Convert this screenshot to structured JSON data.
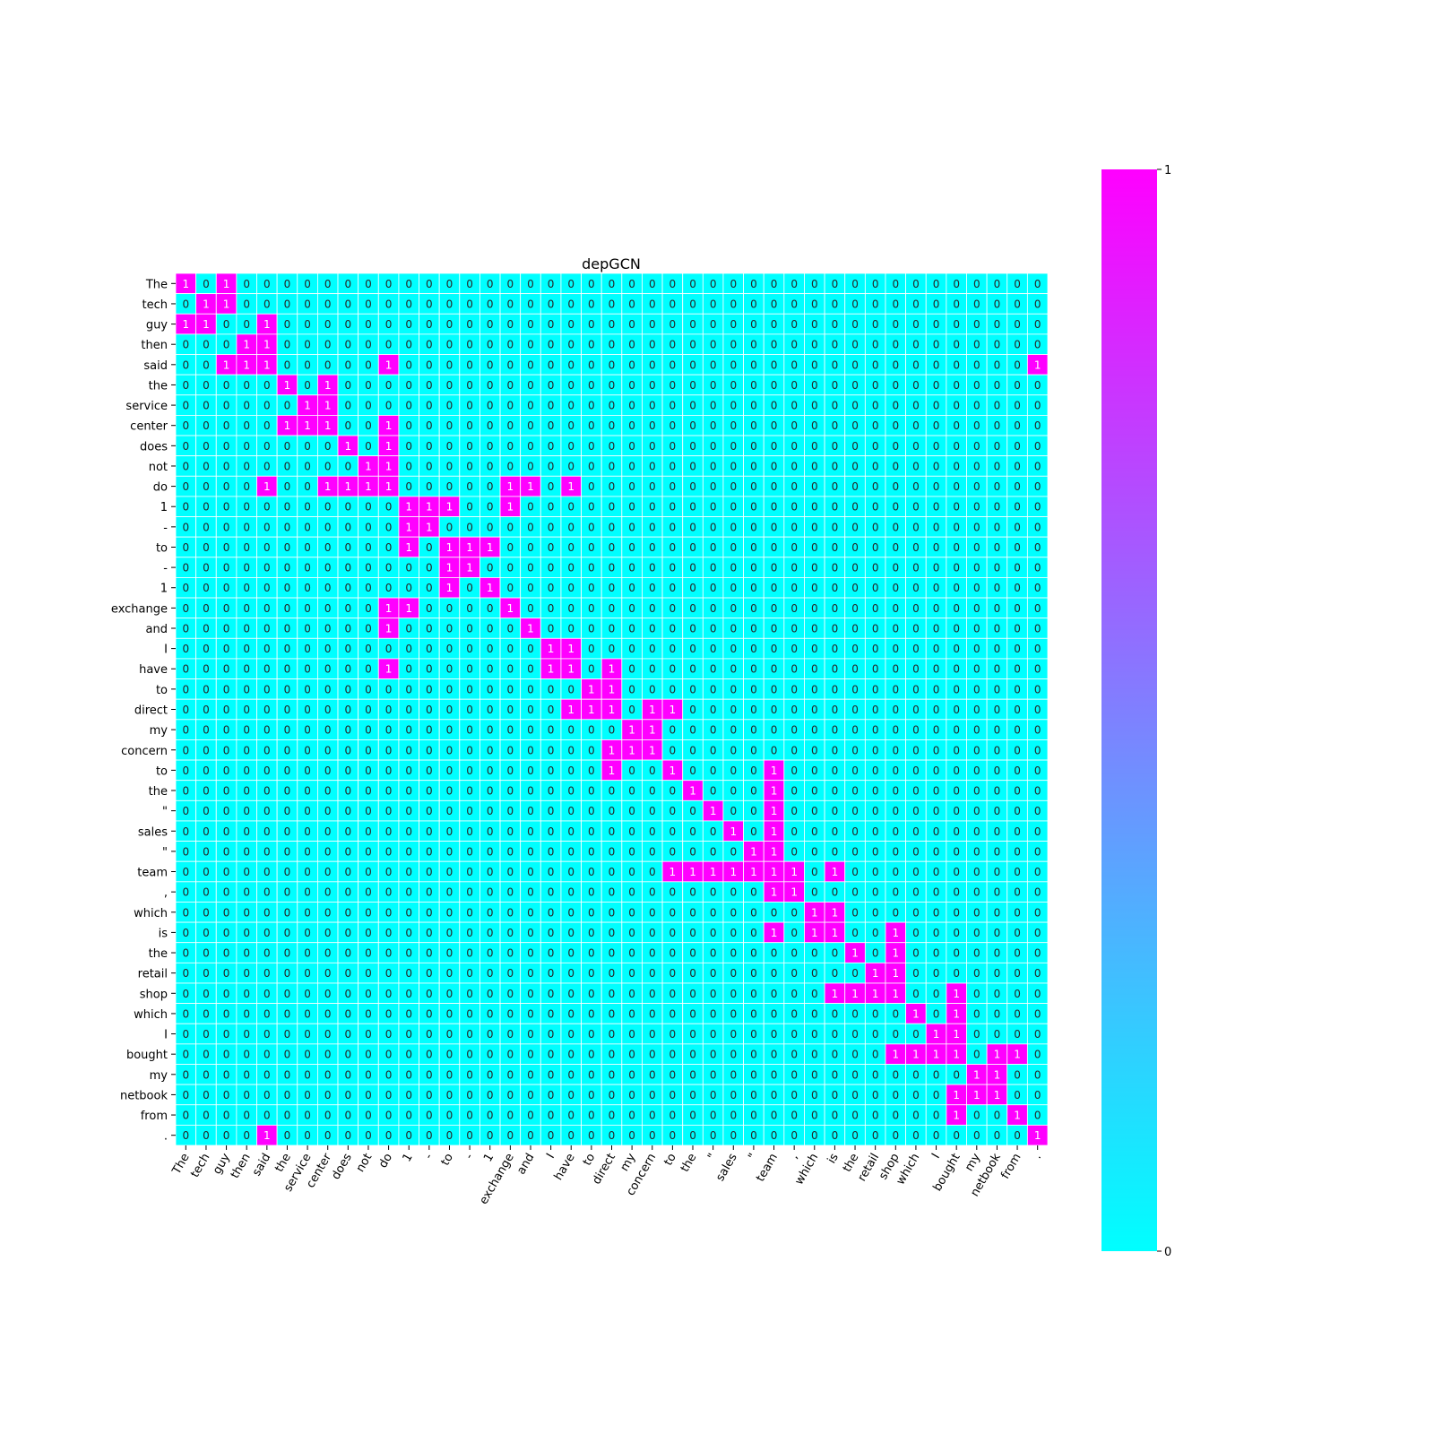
{
  "chart_data": {
    "type": "heatmap",
    "title": "depGCN",
    "xlabel": "",
    "ylabel": "",
    "tokens": [
      "The",
      "tech",
      "guy",
      "then",
      "said",
      "the",
      "service",
      "center",
      "does",
      "not",
      "do",
      "1",
      "-",
      "to",
      "-",
      "1",
      "exchange",
      "and",
      "I",
      "have",
      "to",
      "direct",
      "my",
      "concern",
      "to",
      "the",
      "\"",
      "sales",
      "\"",
      "team",
      ",",
      "which",
      "is",
      "the",
      "retail",
      "shop",
      "which",
      "I",
      "bought",
      "my",
      "netbook",
      "from",
      "."
    ],
    "x_tick_labels": [
      "The",
      "tech",
      "guy",
      "then",
      "said",
      "the",
      "service",
      "center",
      "does",
      "not",
      "do",
      "1",
      "-",
      "to",
      "-",
      "1",
      "exchange",
      "and",
      "I",
      "have",
      "to",
      "direct",
      "my",
      "concern",
      "to",
      "the",
      "\"",
      "sales",
      "\"",
      "team",
      ",",
      "which",
      "is",
      "the",
      "retail",
      "shop",
      "which",
      "I",
      "bought",
      "my",
      "netbook",
      "from",
      "."
    ],
    "y_tick_labels": [
      "The",
      "tech",
      "guy",
      "then",
      "said",
      "the",
      "service",
      "center",
      "does",
      "not",
      "do",
      "1",
      "-",
      "to",
      "-",
      "1",
      "exchange",
      "and",
      "I",
      "have",
      "to",
      "direct",
      "my",
      "concern",
      "to",
      "the",
      "\"",
      "sales",
      "\"",
      "team",
      ",",
      "which",
      "is",
      "the",
      "retail",
      "shop",
      "which",
      "I",
      "bought",
      "my",
      "netbook",
      "from",
      "."
    ],
    "ones": [
      [
        0,
        2
      ],
      [
        1,
        2
      ],
      [
        0,
        1,
        4
      ],
      [
        3,
        4
      ],
      [
        2,
        3,
        4,
        10,
        42
      ],
      [
        5,
        7
      ],
      [
        6,
        7
      ],
      [
        5,
        6,
        7,
        10
      ],
      [
        8,
        10
      ],
      [
        9,
        10
      ],
      [
        4,
        7,
        8,
        9,
        10,
        16,
        17,
        19
      ],
      [
        11,
        12,
        13,
        16
      ],
      [
        11,
        12
      ],
      [
        11,
        13,
        14,
        15
      ],
      [
        13,
        14
      ],
      [
        13,
        15
      ],
      [
        10,
        11,
        16
      ],
      [
        10,
        17
      ],
      [
        18,
        19
      ],
      [
        10,
        18,
        19,
        21
      ],
      [
        20,
        21
      ],
      [
        19,
        20,
        21,
        23,
        24
      ],
      [
        22,
        23
      ],
      [
        21,
        22,
        23
      ],
      [
        21,
        24,
        29
      ],
      [
        25,
        29
      ],
      [
        26,
        29
      ],
      [
        27,
        29
      ],
      [
        28,
        29
      ],
      [
        24,
        25,
        26,
        27,
        28,
        29,
        30,
        32
      ],
      [
        29,
        30
      ],
      [
        31,
        32
      ],
      [
        29,
        31,
        32,
        35
      ],
      [
        33,
        35
      ],
      [
        34,
        35
      ],
      [
        32,
        33,
        34,
        35,
        38
      ],
      [
        36,
        38
      ],
      [
        37,
        38
      ],
      [
        35,
        36,
        37,
        38,
        40,
        41
      ],
      [
        39,
        40
      ],
      [
        38,
        39,
        40
      ],
      [
        38,
        41
      ],
      [
        4,
        42
      ]
    ],
    "colormap": "cool",
    "color_low": "#00ffff",
    "color_high": "#ff00ff",
    "grid_line_color": "#ffffff",
    "annotate_cells": true,
    "colorbar": {
      "min": 0,
      "max": 1,
      "ticks": [
        "0",
        "1"
      ]
    }
  }
}
